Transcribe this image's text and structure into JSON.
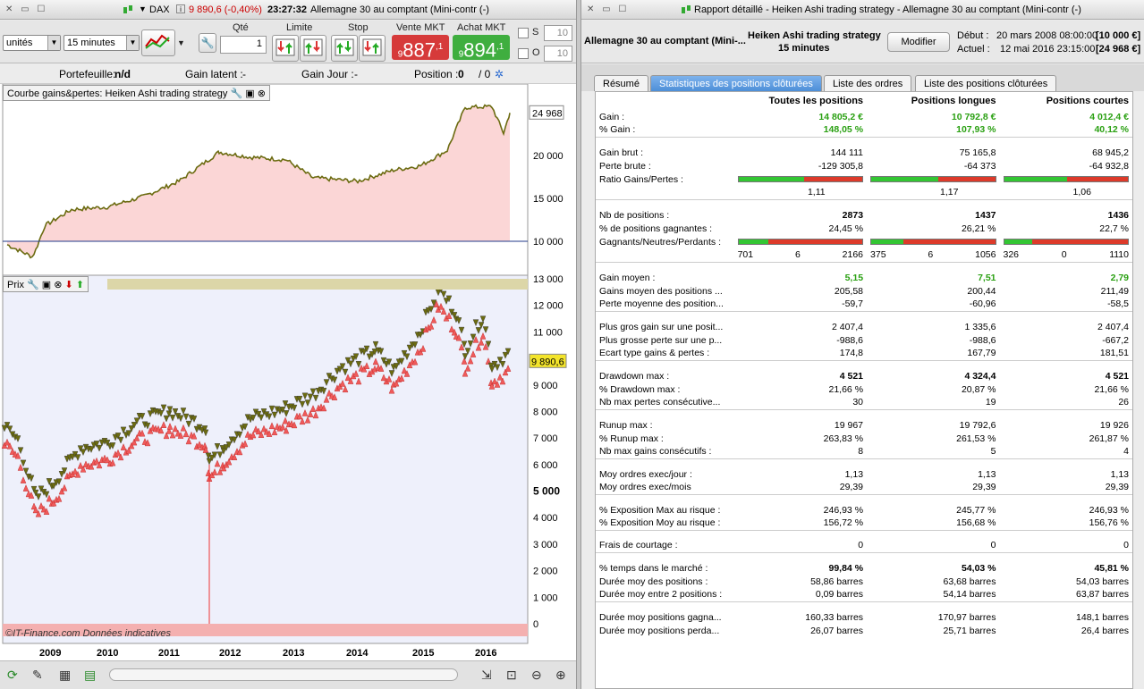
{
  "left": {
    "title_instrument": "DAX",
    "title_price": "9 890,6 (-0,40%)",
    "title_time": "23:27:32",
    "title_name": "Allemagne 30 au comptant (Mini-contr (-)",
    "units": "unités",
    "timeframe": "15 minutes",
    "qty_label": "Qté",
    "qty_value": "1",
    "limit_label": "Limite",
    "stop_label": "Stop",
    "sell_label": "Vente MKT",
    "buy_label": "Achat MKT",
    "sell_prefix": "9",
    "sell_price": "887",
    "sell_sup": ",1",
    "buy_prefix": "9",
    "buy_price": "894",
    "buy_sup": ",1",
    "s_label": "S",
    "o_label": "O",
    "s_value": "10",
    "o_value": "10",
    "portfolio_label": "Portefeuille:",
    "portfolio_value": "n/d",
    "latent_label": "Gain latent :",
    "latent_value": "-",
    "day_label": "Gain Jour :",
    "day_value": "-",
    "position_label": "Position :",
    "position_value": "0",
    "position_sep": "/ 0",
    "equity_panel_title": "Courbe gains&pertes: Heiken Ashi trading strategy",
    "price_panel_title": "Prix",
    "equity_last": "24 968",
    "price_last": "9 890,6",
    "watermark": "©IT-Finance.com Données indicatives",
    "equity_axis": [
      "20 000",
      "15 000",
      "10 000"
    ],
    "price_axis": [
      "13 000",
      "12 000",
      "11 000",
      "10 000",
      "9 000",
      "8 000",
      "7 000",
      "6 000",
      "5 000",
      "4 000",
      "3 000",
      "2 000",
      "1 000",
      "0"
    ],
    "years": [
      "2009",
      "2010",
      "2011",
      "2012",
      "2013",
      "2014",
      "2015",
      "2016"
    ]
  },
  "right": {
    "title": "Rapport détaillé - Heiken Ashi trading strategy - Allemagne 30 au comptant (Mini-contr (-)",
    "instrument": "Allemagne 30 au comptant (Mini-...",
    "strategy": "Heiken Ashi trading strategy",
    "strategy_tf": "15 minutes",
    "modify_button": "Modifier",
    "start_label": "Début :",
    "start_value": "20 mars 2008 08:00:00",
    "start_capital": "[10 000 €]",
    "end_label": "Actuel :",
    "end_value": "12 mai 2016 23:15:00",
    "end_capital": "[24 968 €]",
    "tabs": [
      "Résumé",
      "Statistiques des positions clôturées",
      "Liste des ordres",
      "Liste des positions clôturées"
    ],
    "col_all": "Toutes les positions",
    "col_long": "Positions longues",
    "col_short": "Positions courtes",
    "rows": {
      "gain": {
        "label": "Gain :",
        "all": "14 805,2 €",
        "long": "10 792,8 €",
        "short": "4 012,4 €"
      },
      "pct_gain": {
        "label": "% Gain :",
        "all": "148,05 %",
        "long": "107,93 %",
        "short": "40,12 %"
      },
      "gross_gain": {
        "label": "Gain brut :",
        "all": "144 111",
        "long": "75 165,8",
        "short": "68 945,2"
      },
      "gross_loss": {
        "label": "Perte brute :",
        "all": "-129 305,8",
        "long": "-64 373",
        "short": "-64 932,8"
      },
      "ratio": {
        "label": "Ratio Gains/Pertes :",
        "all": "1,11",
        "long": "1,17",
        "short": "1,06"
      },
      "nb_pos": {
        "label": "Nb de positions :",
        "all": "2873",
        "long": "1437",
        "short": "1436"
      },
      "pct_win": {
        "label": "% de positions gagnantes :",
        "all": "24,45 %",
        "long": "26,21 %",
        "short": "22,7 %"
      },
      "gnp": {
        "label": "Gagnants/Neutres/Perdants :",
        "all": [
          "701",
          "6",
          "2166"
        ],
        "long": [
          "375",
          "6",
          "1056"
        ],
        "short": [
          "326",
          "0",
          "1110"
        ]
      },
      "avg_gain": {
        "label": "Gain moyen :",
        "all": "5,15",
        "long": "7,51",
        "short": "2,79"
      },
      "avg_win": {
        "label": "Gains moyen des positions ...",
        "all": "205,58",
        "long": "200,44",
        "short": "211,49"
      },
      "avg_loss": {
        "label": "Perte moyenne des position...",
        "all": "-59,7",
        "long": "-60,96",
        "short": "-58,5"
      },
      "max_win": {
        "label": "Plus gros gain sur une posit...",
        "all": "2 407,4",
        "long": "1 335,6",
        "short": "2 407,4"
      },
      "max_loss": {
        "label": "Plus grosse perte sur une p...",
        "all": "-988,6",
        "long": "-988,6",
        "short": "-667,2"
      },
      "stdev": {
        "label": "Ecart type gains & pertes :",
        "all": "174,8",
        "long": "167,79",
        "short": "181,51"
      },
      "dd": {
        "label": "Drawdown max :",
        "all": "4 521",
        "long": "4 324,4",
        "short": "4 521"
      },
      "pct_dd": {
        "label": "% Drawdown max :",
        "all": "21,66 %",
        "long": "20,87 %",
        "short": "21,66 %"
      },
      "max_consec_loss": {
        "label": "Nb max pertes consécutive...",
        "all": "30",
        "long": "19",
        "short": "26"
      },
      "runup": {
        "label": "Runup max :",
        "all": "19 967",
        "long": "19 792,6",
        "short": "19 926"
      },
      "pct_runup": {
        "label": "% Runup max :",
        "all": "263,83 %",
        "long": "261,53 %",
        "short": "261,87 %"
      },
      "max_consec_win": {
        "label": "Nb max gains consécutifs :",
        "all": "8",
        "long": "5",
        "short": "4"
      },
      "orders_day": {
        "label": "Moy ordres exec/jour :",
        "all": "1,13",
        "long": "1,13",
        "short": "1,13"
      },
      "orders_month": {
        "label": "Moy ordres exec/mois",
        "all": "29,39",
        "long": "29,39",
        "short": "29,39"
      },
      "exp_max": {
        "label": "% Exposition Max au risque :",
        "all": "246,93 %",
        "long": "245,77 %",
        "short": "246,93 %"
      },
      "exp_avg": {
        "label": "% Exposition Moy au risque :",
        "all": "156,72 %",
        "long": "156,68 %",
        "short": "156,76 %"
      },
      "fees": {
        "label": "Frais de courtage :",
        "all": "0",
        "long": "0",
        "short": "0"
      },
      "time_market": {
        "label": "% temps dans le marché :",
        "all": "99,84 %",
        "long": "54,03 %",
        "short": "45,81 %"
      },
      "avg_dur": {
        "label": "Durée moy des positions :",
        "all": "58,86 barres",
        "long": "63,68 barres",
        "short": "54,03 barres"
      },
      "avg_between": {
        "label": "Durée moy entre 2 positions :",
        "all": "0,09 barres",
        "long": "54,14 barres",
        "short": "63,87 barres"
      },
      "avg_dur_win": {
        "label": "Durée moy positions gagna...",
        "all": "160,33 barres",
        "long": "170,97 barres",
        "short": "148,1 barres"
      },
      "avg_dur_loss": {
        "label": "Durée moy positions perda...",
        "all": "26,07 barres",
        "long": "25,71 barres",
        "short": "26,4 barres"
      }
    },
    "ratio_bars": {
      "all": 0.53,
      "long": 0.54,
      "short": 0.51
    },
    "win_bars": {
      "all": 0.24,
      "long": 0.26,
      "short": 0.23
    }
  },
  "colors": {
    "gain_green": "#2aa012",
    "sell_red": "#d63a3a",
    "buy_green": "#3fae3f",
    "tab_blue": "#4d8fd8",
    "equity_fill": "#fbd6d6"
  }
}
